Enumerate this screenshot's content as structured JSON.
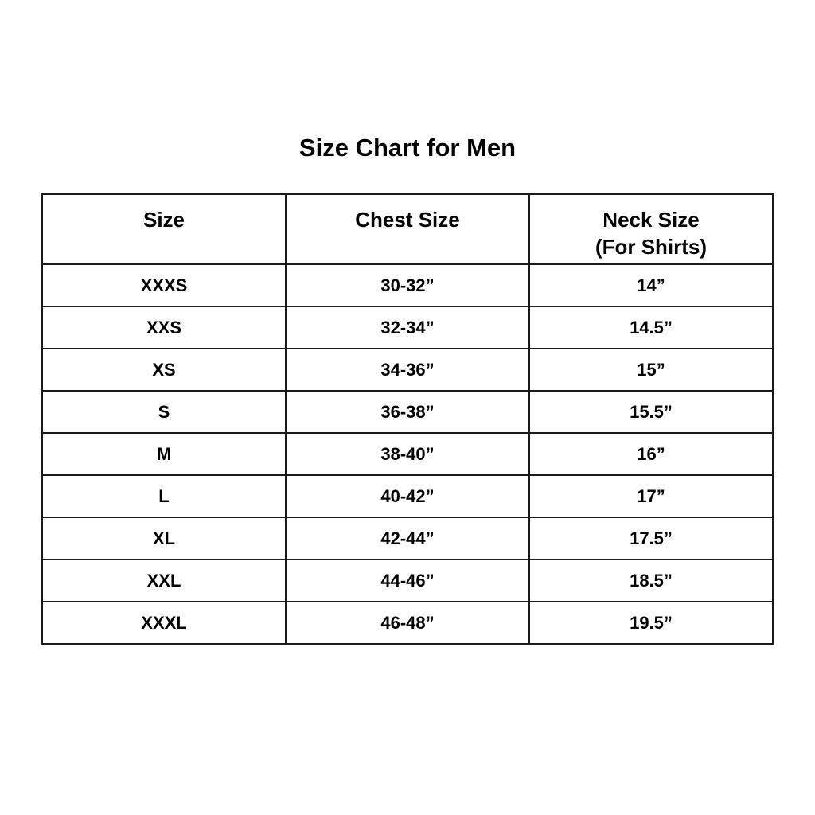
{
  "title": "Size Chart for Men",
  "table": {
    "headers": [
      "Size",
      "Chest Size",
      "Neck Size"
    ],
    "header_sub": "(For Shirts)",
    "rows": [
      [
        "XXXS",
        "30-32”",
        "14”"
      ],
      [
        "XXS",
        "32-34”",
        "14.5”"
      ],
      [
        "XS",
        "34-36”",
        "15”"
      ],
      [
        "S",
        "36-38”",
        "15.5”"
      ],
      [
        "M",
        "38-40”",
        "16”"
      ],
      [
        "L",
        "40-42”",
        "17”"
      ],
      [
        "XL",
        "42-44”",
        "17.5”"
      ],
      [
        "XXL",
        "44-46”",
        "18.5”"
      ],
      [
        "XXXL",
        "46-48”",
        "19.5”"
      ]
    ]
  }
}
